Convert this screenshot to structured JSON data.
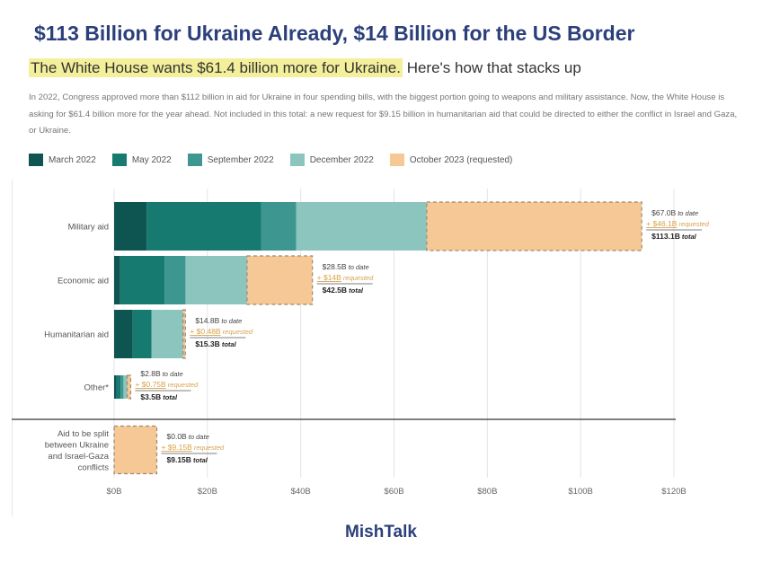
{
  "headline": "$113 Billion for Ukraine Already, $14 Billion for the US Border",
  "subhead": {
    "highlight": "The White House wants $61.4 billion more for Ukraine.",
    "rest": " Here's how that stacks up"
  },
  "description": "In 2022, Congress approved more than $112 billion in aid for Ukraine in four spending bills, with the biggest portion going to weapons and military assistance. Now, the White House is asking for $61.4 billion more for the year ahead. Not included in this total: a new request for $9.15 billion in humanitarian aid that could be directed to either the conflict in Israel and Gaza, or Ukraine.",
  "footer": "MishTalk",
  "colors": {
    "March 2022": "#0e5450",
    "May 2022": "#167a71",
    "September 2022": "#3d9690",
    "December 2022": "#8cc4be",
    "October 2023 (requested)": "#f5c896",
    "requested_text": "#d6a24a",
    "dashed_border": "#9c8a72"
  },
  "chart_data": {
    "type": "bar",
    "orientation": "horizontal",
    "stacked": true,
    "xlim": [
      0,
      120
    ],
    "x_ticks": [
      "$0B",
      "$20B",
      "$40B",
      "$60B",
      "$80B",
      "$100B",
      "$120B"
    ],
    "grid": true,
    "legend_position": "top-left",
    "categories": [
      "Military aid",
      "Economic aid",
      "Humanitarian aid",
      "Other*",
      "Aid to be split between Ukraine and Israel-Gaza conflicts"
    ],
    "series": [
      {
        "name": "March 2022",
        "values": [
          7.0,
          1.3,
          4.0,
          0.5,
          0
        ]
      },
      {
        "name": "May 2022",
        "values": [
          24.5,
          9.5,
          4.0,
          0.9,
          0
        ]
      },
      {
        "name": "September 2022",
        "values": [
          7.5,
          4.5,
          0,
          0.6,
          0
        ]
      },
      {
        "name": "December 2022",
        "values": [
          28.0,
          13.2,
          6.8,
          0.8,
          0
        ]
      },
      {
        "name": "October 2023 (requested)",
        "values": [
          46.1,
          14.0,
          0.48,
          0.75,
          9.15
        ]
      }
    ],
    "annotations": [
      {
        "to_date": "$67.0B",
        "to_date_suffix": "to date",
        "requested": "+ $46.1B",
        "requested_suffix": "requested",
        "total": "$113.1B",
        "total_suffix": "total"
      },
      {
        "to_date": "$28.5B",
        "to_date_suffix": "to date",
        "requested": "+ $14B",
        "requested_suffix": "requested",
        "total": "$42.5B",
        "total_suffix": "total"
      },
      {
        "to_date": "$14.8B",
        "to_date_suffix": "to date",
        "requested": "+ $0.48B",
        "requested_suffix": "requested",
        "total": "$15.3B",
        "total_suffix": "total"
      },
      {
        "to_date": "$2.8B",
        "to_date_suffix": "to date",
        "requested": "+ $0.75B",
        "requested_suffix": "requested",
        "total": "$3.5B",
        "total_suffix": "total"
      },
      {
        "to_date": "$0.0B",
        "to_date_suffix": "to date",
        "requested": "+ $9.15B",
        "requested_suffix": "requested",
        "total": "$9.15B",
        "total_suffix": "total"
      }
    ]
  }
}
